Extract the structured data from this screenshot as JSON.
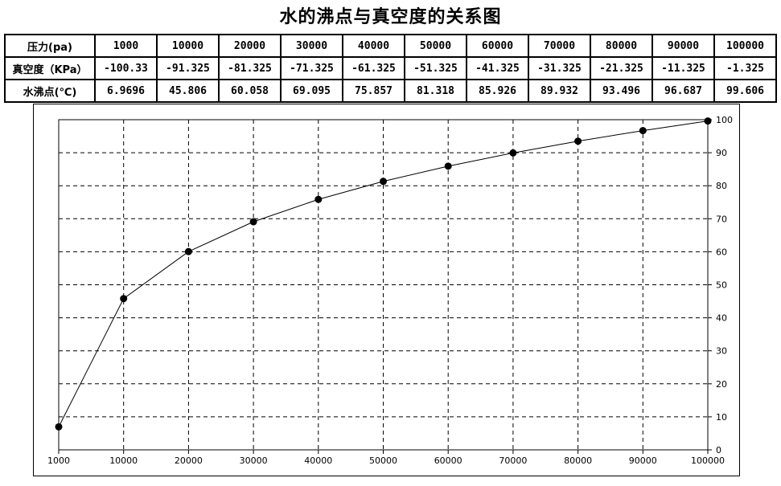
{
  "title": "水的沸点与真空度的关系图",
  "table": {
    "rows": [
      {
        "header": "压力(pa)",
        "cells": [
          "1000",
          "10000",
          "20000",
          "30000",
          "40000",
          "50000",
          "60000",
          "70000",
          "80000",
          "90000",
          "100000"
        ]
      },
      {
        "header": "真空度（KPa）",
        "cells": [
          "-100.33",
          "-91.325",
          "-81.325",
          "-71.325",
          "-61.325",
          "-51.325",
          "-41.325",
          "-31.325",
          "-21.325",
          "-11.325",
          "-1.325"
        ]
      },
      {
        "header": "水沸点(℃)",
        "cells": [
          "6.9696",
          "45.806",
          "60.058",
          "69.095",
          "75.857",
          "81.318",
          "85.926",
          "89.932",
          "93.496",
          "96.687",
          "99.606"
        ]
      }
    ]
  },
  "chart_data": {
    "type": "line",
    "x_scale": "categorical",
    "categories": [
      "1000",
      "10000",
      "20000",
      "30000",
      "40000",
      "50000",
      "60000",
      "70000",
      "80000",
      "90000",
      "100000"
    ],
    "series": [
      {
        "values": [
          6.9696,
          45.806,
          60.058,
          69.095,
          75.857,
          81.318,
          85.926,
          89.932,
          93.496,
          96.687,
          99.606
        ]
      }
    ],
    "xlabel": "",
    "ylabel": "",
    "y_axis_side": "right",
    "ylim": [
      0,
      100
    ],
    "yticks": [
      0,
      10,
      20,
      30,
      40,
      50,
      60,
      70,
      80,
      90,
      100
    ],
    "grid": "dashed",
    "markers": "filled-circle",
    "colors": {
      "line": "#000000",
      "marker": "#000000",
      "grid": "#000000"
    }
  }
}
